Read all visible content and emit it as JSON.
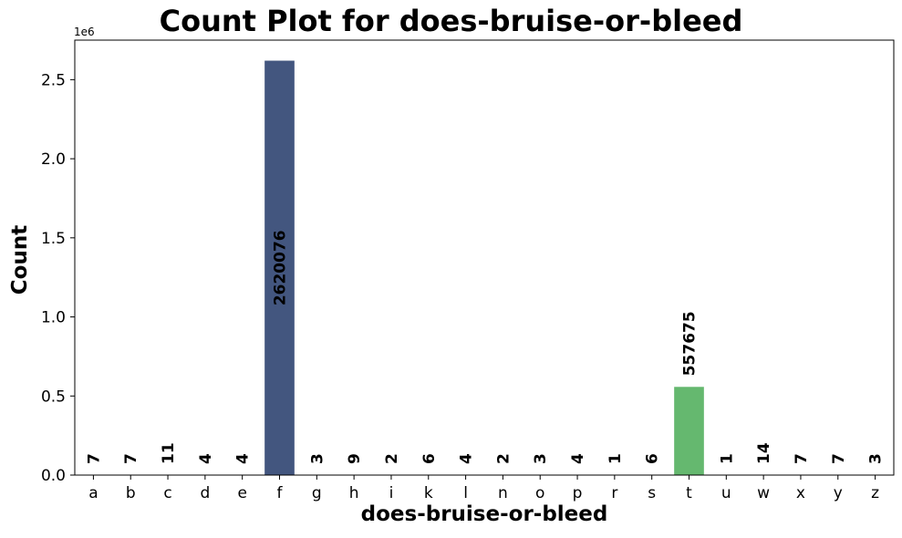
{
  "chart_data": {
    "type": "bar",
    "title": "Count Plot for does-bruise-or-bleed",
    "xlabel": "does-bruise-or-bleed",
    "ylabel": "Count",
    "y_offset_text": "1e6",
    "categories": [
      "a",
      "b",
      "c",
      "d",
      "e",
      "f",
      "g",
      "h",
      "i",
      "k",
      "l",
      "n",
      "o",
      "p",
      "r",
      "s",
      "t",
      "u",
      "w",
      "x",
      "y",
      "z"
    ],
    "values": [
      7,
      7,
      11,
      4,
      4,
      2620076,
      3,
      9,
      2,
      6,
      4,
      2,
      3,
      4,
      1,
      6,
      557675,
      1,
      14,
      7,
      7,
      3
    ],
    "ylim": [
      0,
      2750000
    ],
    "yticks": [
      0,
      500000,
      1000000,
      1500000,
      2000000,
      2500000
    ],
    "ytick_labels": [
      "0.0",
      "0.5",
      "1.0",
      "1.5",
      "2.0",
      "2.5"
    ],
    "bar_colors": {
      "f": "#43567f",
      "t": "#65b86f"
    },
    "grid": false,
    "legend": "none"
  }
}
